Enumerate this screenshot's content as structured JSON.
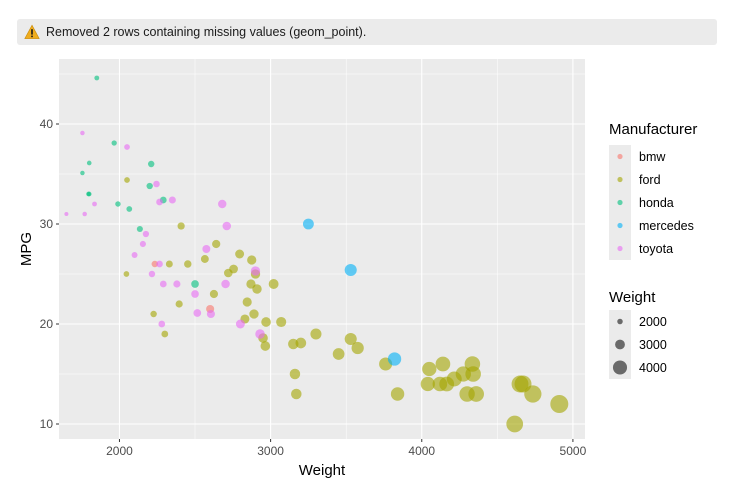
{
  "warning": {
    "icon": "warning-triangle-icon",
    "text": "Removed 2 rows containing missing values (geom_point)."
  },
  "colors": {
    "panel_bg": "#ebebeb",
    "grid": "#ffffff",
    "bmw": "#f8766d",
    "ford": "#a3a500",
    "honda": "#00bf7d",
    "mercedes": "#00b0f6",
    "toyota": "#e76bf3"
  },
  "chart_data": {
    "type": "scatter",
    "xlabel": "Weight",
    "ylabel": "MPG",
    "xlim": [
      1600,
      5080
    ],
    "ylim": [
      8.5,
      46.5
    ],
    "x_ticks": [
      2000,
      3000,
      4000,
      5000
    ],
    "y_ticks": [
      10,
      20,
      30,
      40
    ],
    "grid": true,
    "legend_position": "right",
    "color_legend": {
      "title": "Manufacturer",
      "entries": [
        "bmw",
        "ford",
        "honda",
        "mercedes",
        "toyota"
      ]
    },
    "size_legend": {
      "title": "Weight",
      "entries": [
        2000,
        3000,
        4000
      ]
    },
    "series": [
      {
        "name": "bmw",
        "points": [
          [
            2234,
            26
          ],
          [
            2600,
            21.5
          ]
        ]
      },
      {
        "name": "ford",
        "points": [
          [
            2046,
            25
          ],
          [
            2050,
            34.4
          ],
          [
            2226,
            21
          ],
          [
            2300,
            19
          ],
          [
            2330,
            26
          ],
          [
            2395,
            22
          ],
          [
            2408,
            29.8
          ],
          [
            2452,
            26
          ],
          [
            2565,
            26.5
          ],
          [
            2625,
            23
          ],
          [
            2640,
            28
          ],
          [
            2720,
            25.1
          ],
          [
            2755,
            25.5
          ],
          [
            2795,
            27
          ],
          [
            2830,
            20.5
          ],
          [
            2845,
            22.2
          ],
          [
            2870,
            24
          ],
          [
            2875,
            26.4
          ],
          [
            2890,
            21
          ],
          [
            2900,
            25
          ],
          [
            2910,
            23.5
          ],
          [
            2950,
            18.6
          ],
          [
            2970,
            20.2
          ],
          [
            3020,
            24
          ],
          [
            2965,
            17.8
          ],
          [
            3070,
            20.2
          ],
          [
            3150,
            18
          ],
          [
            3161,
            15
          ],
          [
            3170,
            13
          ],
          [
            3200,
            18.1
          ],
          [
            3300,
            19
          ],
          [
            3450,
            17
          ],
          [
            3530,
            18.5
          ],
          [
            3576,
            17.6
          ],
          [
            3761,
            16
          ],
          [
            3840,
            13
          ],
          [
            4040,
            14
          ],
          [
            4050,
            15.5
          ],
          [
            4120,
            14
          ],
          [
            4140,
            16
          ],
          [
            4165,
            14
          ],
          [
            4215,
            14.5
          ],
          [
            4275,
            15
          ],
          [
            4300,
            13
          ],
          [
            4335,
            16
          ],
          [
            4340,
            15
          ],
          [
            4360,
            13
          ],
          [
            4615,
            10
          ],
          [
            4650,
            14
          ],
          [
            4670,
            14
          ],
          [
            4735,
            13
          ],
          [
            4910,
            12
          ]
        ]
      },
      {
        "name": "honda",
        "points": [
          [
            1755,
            35.1
          ],
          [
            1795,
            33
          ],
          [
            1800,
            36.1
          ],
          [
            1800,
            33
          ],
          [
            1850,
            44.6
          ],
          [
            1965,
            38.1
          ],
          [
            1990,
            32
          ],
          [
            2065,
            31.5
          ],
          [
            2135,
            29.5
          ],
          [
            2210,
            36
          ],
          [
            2200,
            33.8
          ],
          [
            2290,
            32.4
          ],
          [
            2500,
            24
          ]
        ]
      },
      {
        "name": "mercedes",
        "points": [
          [
            3250,
            30
          ],
          [
            3530,
            25.4
          ],
          [
            3820,
            16.5
          ]
        ]
      },
      {
        "name": "toyota",
        "points": [
          [
            1649,
            31
          ],
          [
            1755,
            39.1
          ],
          [
            1770,
            31
          ],
          [
            1835,
            32
          ],
          [
            2050,
            37.7
          ],
          [
            2100,
            26.9
          ],
          [
            2155,
            28
          ],
          [
            2175,
            29
          ],
          [
            2215,
            25
          ],
          [
            2245,
            34
          ],
          [
            2265,
            32.2
          ],
          [
            2265,
            26
          ],
          [
            2280,
            20
          ],
          [
            2290,
            24
          ],
          [
            2350,
            32.4
          ],
          [
            2380,
            24
          ],
          [
            2500,
            23
          ],
          [
            2515,
            21.1
          ],
          [
            2575,
            27.5
          ],
          [
            2605,
            21
          ],
          [
            2680,
            32
          ],
          [
            2702,
            24
          ],
          [
            2710,
            29.8
          ],
          [
            2800,
            20
          ],
          [
            2900,
            25.3
          ],
          [
            2930,
            19
          ]
        ]
      }
    ]
  }
}
